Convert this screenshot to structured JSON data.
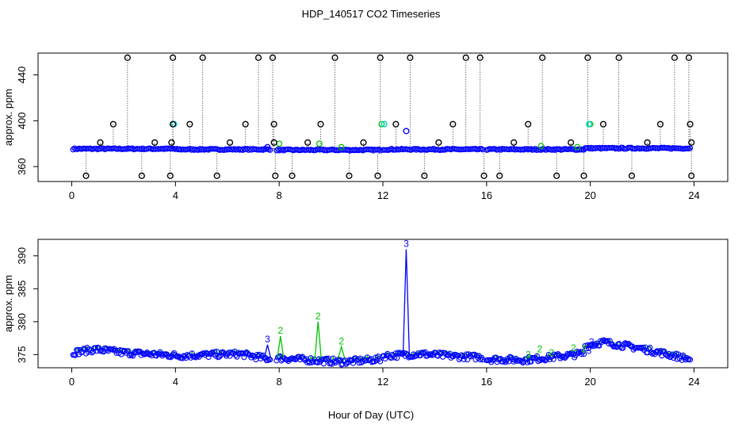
{
  "title": "HDP_140517  CO2 Timeseries",
  "xlabel": "Hour of Day (UTC)",
  "colors": {
    "black": "#000000",
    "blue": "#0000ff",
    "green": "#00c000",
    "cyan": "#00d0d0"
  },
  "chart_data": [
    {
      "type": "scatter",
      "title": "HDP_140517  CO2 Timeseries",
      "ylabel": "approx. ppm",
      "xlim": [
        -1.3,
        25.3
      ],
      "ylim": [
        347,
        459
      ],
      "xticks": [
        0,
        4,
        8,
        12,
        16,
        20,
        24
      ],
      "yticks": [
        360,
        400,
        440
      ],
      "segments": [
        {
          "start": 0.05,
          "end": 3.95,
          "level": 375.5
        },
        {
          "start": 4.0,
          "end": 7.65,
          "level": 375.0
        },
        {
          "start": 7.9,
          "end": 11.9,
          "level": 374.5
        },
        {
          "start": 12.0,
          "end": 15.85,
          "level": 375.0
        },
        {
          "start": 16.0,
          "end": 19.75,
          "level": 375.0
        },
        {
          "start": 19.8,
          "end": 23.85,
          "level": 376.0
        }
      ],
      "outliers_black": [
        {
          "x": 0.55,
          "y": 352
        },
        {
          "x": 1.1,
          "y": 381
        },
        {
          "x": 1.6,
          "y": 397
        },
        {
          "x": 2.15,
          "y": 455
        },
        {
          "x": 2.7,
          "y": 352
        },
        {
          "x": 3.2,
          "y": 381
        },
        {
          "x": 3.8,
          "y": 352
        },
        {
          "x": 3.85,
          "y": 381
        },
        {
          "x": 3.9,
          "y": 397
        },
        {
          "x": 3.9,
          "y": 455
        },
        {
          "x": 4.55,
          "y": 397
        },
        {
          "x": 5.05,
          "y": 455
        },
        {
          "x": 5.6,
          "y": 352
        },
        {
          "x": 6.1,
          "y": 381
        },
        {
          "x": 6.7,
          "y": 397
        },
        {
          "x": 7.2,
          "y": 455
        },
        {
          "x": 7.75,
          "y": 455
        },
        {
          "x": 7.8,
          "y": 397
        },
        {
          "x": 7.8,
          "y": 381
        },
        {
          "x": 7.85,
          "y": 352
        },
        {
          "x": 8.5,
          "y": 352
        },
        {
          "x": 9.1,
          "y": 381
        },
        {
          "x": 9.6,
          "y": 397
        },
        {
          "x": 10.15,
          "y": 455
        },
        {
          "x": 10.7,
          "y": 352
        },
        {
          "x": 11.25,
          "y": 381
        },
        {
          "x": 11.8,
          "y": 352
        },
        {
          "x": 11.9,
          "y": 455
        },
        {
          "x": 12.5,
          "y": 397
        },
        {
          "x": 13.05,
          "y": 455
        },
        {
          "x": 13.6,
          "y": 352
        },
        {
          "x": 14.15,
          "y": 381
        },
        {
          "x": 14.7,
          "y": 397
        },
        {
          "x": 15.2,
          "y": 455
        },
        {
          "x": 15.75,
          "y": 455
        },
        {
          "x": 15.9,
          "y": 352
        },
        {
          "x": 16.5,
          "y": 352
        },
        {
          "x": 17.05,
          "y": 381
        },
        {
          "x": 17.6,
          "y": 397
        },
        {
          "x": 18.15,
          "y": 455
        },
        {
          "x": 18.7,
          "y": 352
        },
        {
          "x": 19.25,
          "y": 381
        },
        {
          "x": 19.75,
          "y": 352
        },
        {
          "x": 19.9,
          "y": 455
        },
        {
          "x": 20.5,
          "y": 397
        },
        {
          "x": 21.1,
          "y": 455
        },
        {
          "x": 21.6,
          "y": 352
        },
        {
          "x": 22.2,
          "y": 381
        },
        {
          "x": 22.7,
          "y": 397
        },
        {
          "x": 23.25,
          "y": 455
        },
        {
          "x": 23.8,
          "y": 455
        },
        {
          "x": 23.85,
          "y": 397
        },
        {
          "x": 23.9,
          "y": 381
        },
        {
          "x": 23.9,
          "y": 352
        }
      ],
      "outliers_blue": [
        {
          "x": 12.9,
          "y": 391
        },
        {
          "x": 7.55,
          "y": 377
        }
      ],
      "outliers_green": [
        {
          "x": 8.0,
          "y": 380
        },
        {
          "x": 9.55,
          "y": 380
        },
        {
          "x": 10.4,
          "y": 377
        },
        {
          "x": 11.95,
          "y": 397
        },
        {
          "x": 18.1,
          "y": 378
        },
        {
          "x": 19.5,
          "y": 377
        },
        {
          "x": 20.0,
          "y": 397
        }
      ],
      "outliers_cyan": [
        {
          "x": 3.95,
          "y": 397
        },
        {
          "x": 12.05,
          "y": 397
        },
        {
          "x": 19.95,
          "y": 397
        }
      ]
    },
    {
      "type": "scatter",
      "ylabel": "approx. ppm",
      "xlim": [
        -1.3,
        25.3
      ],
      "ylim": [
        373,
        392.5
      ],
      "xticks": [
        0,
        4,
        8,
        12,
        16,
        20,
        24
      ],
      "yticks": [
        375,
        380,
        385,
        390
      ],
      "segments": [
        {
          "start": 0.05,
          "end": 3.95,
          "profile": [
            [
              0.05,
              375.3
            ],
            [
              0.9,
              375.8
            ],
            [
              2.0,
              375.3
            ],
            [
              3.95,
              374.9
            ]
          ]
        },
        {
          "start": 4.0,
          "end": 7.65,
          "profile": [
            [
              4.0,
              374.8
            ],
            [
              5.5,
              375.0
            ],
            [
              6.5,
              375.1
            ],
            [
              7.65,
              374.3
            ]
          ]
        },
        {
          "start": 7.9,
          "end": 11.9,
          "profile": [
            [
              7.9,
              374.5
            ],
            [
              9.5,
              374.1
            ],
            [
              10.5,
              373.9
            ],
            [
              11.9,
              374.3
            ]
          ]
        },
        {
          "start": 12.0,
          "end": 15.85,
          "profile": [
            [
              12.0,
              374.8
            ],
            [
              13.5,
              375.1
            ],
            [
              15.0,
              374.7
            ],
            [
              15.85,
              374.6
            ]
          ]
        },
        {
          "start": 16.0,
          "end": 19.75,
          "profile": [
            [
              16.0,
              374.3
            ],
            [
              17.5,
              374.2
            ],
            [
              19.0,
              374.8
            ],
            [
              19.75,
              375.2
            ]
          ]
        },
        {
          "start": 19.8,
          "end": 23.85,
          "profile": [
            [
              19.8,
              376.3
            ],
            [
              20.5,
              376.9
            ],
            [
              22.0,
              375.9
            ],
            [
              23.85,
              374.3
            ]
          ]
        }
      ],
      "spikes": [
        {
          "x": 12.9,
          "y": 391.0,
          "label": "3",
          "color": "blue"
        },
        {
          "x": 7.55,
          "y": 376.5,
          "label": "3",
          "color": "blue"
        },
        {
          "x": 8.05,
          "y": 377.8,
          "label": "2",
          "color": "green"
        },
        {
          "x": 9.5,
          "y": 380.0,
          "label": "2",
          "color": "green"
        },
        {
          "x": 10.4,
          "y": 376.2,
          "label": "2",
          "color": "green"
        }
      ],
      "small_labels": [
        {
          "x": 17.6,
          "y": 375.0,
          "label": "2",
          "color": "green"
        },
        {
          "x": 18.05,
          "y": 375.8,
          "label": "2",
          "color": "green"
        },
        {
          "x": 18.5,
          "y": 375.3,
          "label": "2",
          "color": "green"
        },
        {
          "x": 19.35,
          "y": 376.0,
          "label": "2",
          "color": "green"
        },
        {
          "x": 19.75,
          "y": 375.8,
          "label": "2",
          "color": "green"
        },
        {
          "x": 20.05,
          "y": 376.9,
          "label": "3",
          "color": "blue"
        },
        {
          "x": 19.95,
          "y": 375.6,
          "label": "3",
          "color": "blue"
        }
      ]
    }
  ]
}
